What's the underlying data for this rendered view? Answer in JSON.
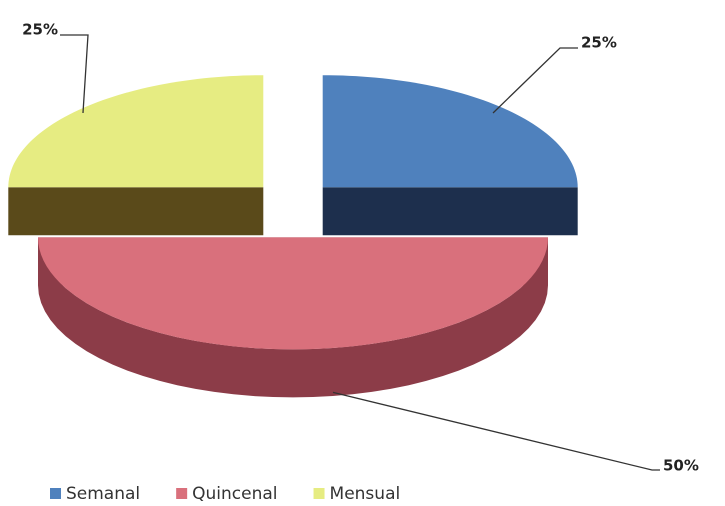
{
  "chart_data": {
    "type": "pie",
    "categories": [
      "Semanal",
      "Quincenal",
      "Mensual"
    ],
    "values": [
      25,
      50,
      25
    ],
    "value_labels": [
      "25%",
      "50%",
      "25%"
    ],
    "colors": [
      "#4f81bd",
      "#d9707c",
      "#e6ec82"
    ],
    "side_colors": [
      "#1d2f4d",
      "#8c3c48",
      "#5a4a1a"
    ],
    "legend": "bottom",
    "exploded": true
  }
}
